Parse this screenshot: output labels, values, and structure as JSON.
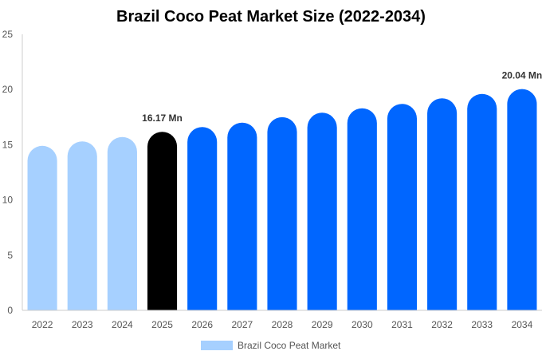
{
  "chart_data": {
    "type": "bar",
    "title": "Brazil Coco Peat Market Size (2022-2034)",
    "categories": [
      "2022",
      "2023",
      "2024",
      "2025",
      "2026",
      "2027",
      "2028",
      "2029",
      "2030",
      "2031",
      "2032",
      "2033",
      "2034"
    ],
    "values": [
      14.9,
      15.3,
      15.7,
      16.17,
      16.6,
      17.0,
      17.5,
      17.9,
      18.3,
      18.7,
      19.2,
      19.6,
      20.04
    ],
    "ylim": [
      0,
      25
    ],
    "yticks": [
      "0",
      "5",
      "10",
      "15",
      "20",
      "25"
    ],
    "grid": false,
    "data_labels": [
      {
        "index": 3,
        "text": "16.17 Mn"
      },
      {
        "index": 12,
        "text": "20.04 Mn"
      }
    ],
    "series": [
      {
        "name": "Brazil Coco Peat Market",
        "values": [
          14.9,
          15.3,
          15.7,
          16.17,
          16.6,
          17.0,
          17.5,
          17.9,
          18.3,
          18.7,
          19.2,
          19.6,
          20.04
        ]
      }
    ],
    "legend": {
      "placement": "bottom-center"
    },
    "colors": {
      "historical": "#a6d0ff",
      "base_year": "#000000",
      "forecast": "#0066ff",
      "axis": "#cccccc"
    },
    "bar_color_group": [
      "historical",
      "historical",
      "historical",
      "base_year",
      "forecast",
      "forecast",
      "forecast",
      "forecast",
      "forecast",
      "forecast",
      "forecast",
      "forecast",
      "forecast"
    ]
  }
}
